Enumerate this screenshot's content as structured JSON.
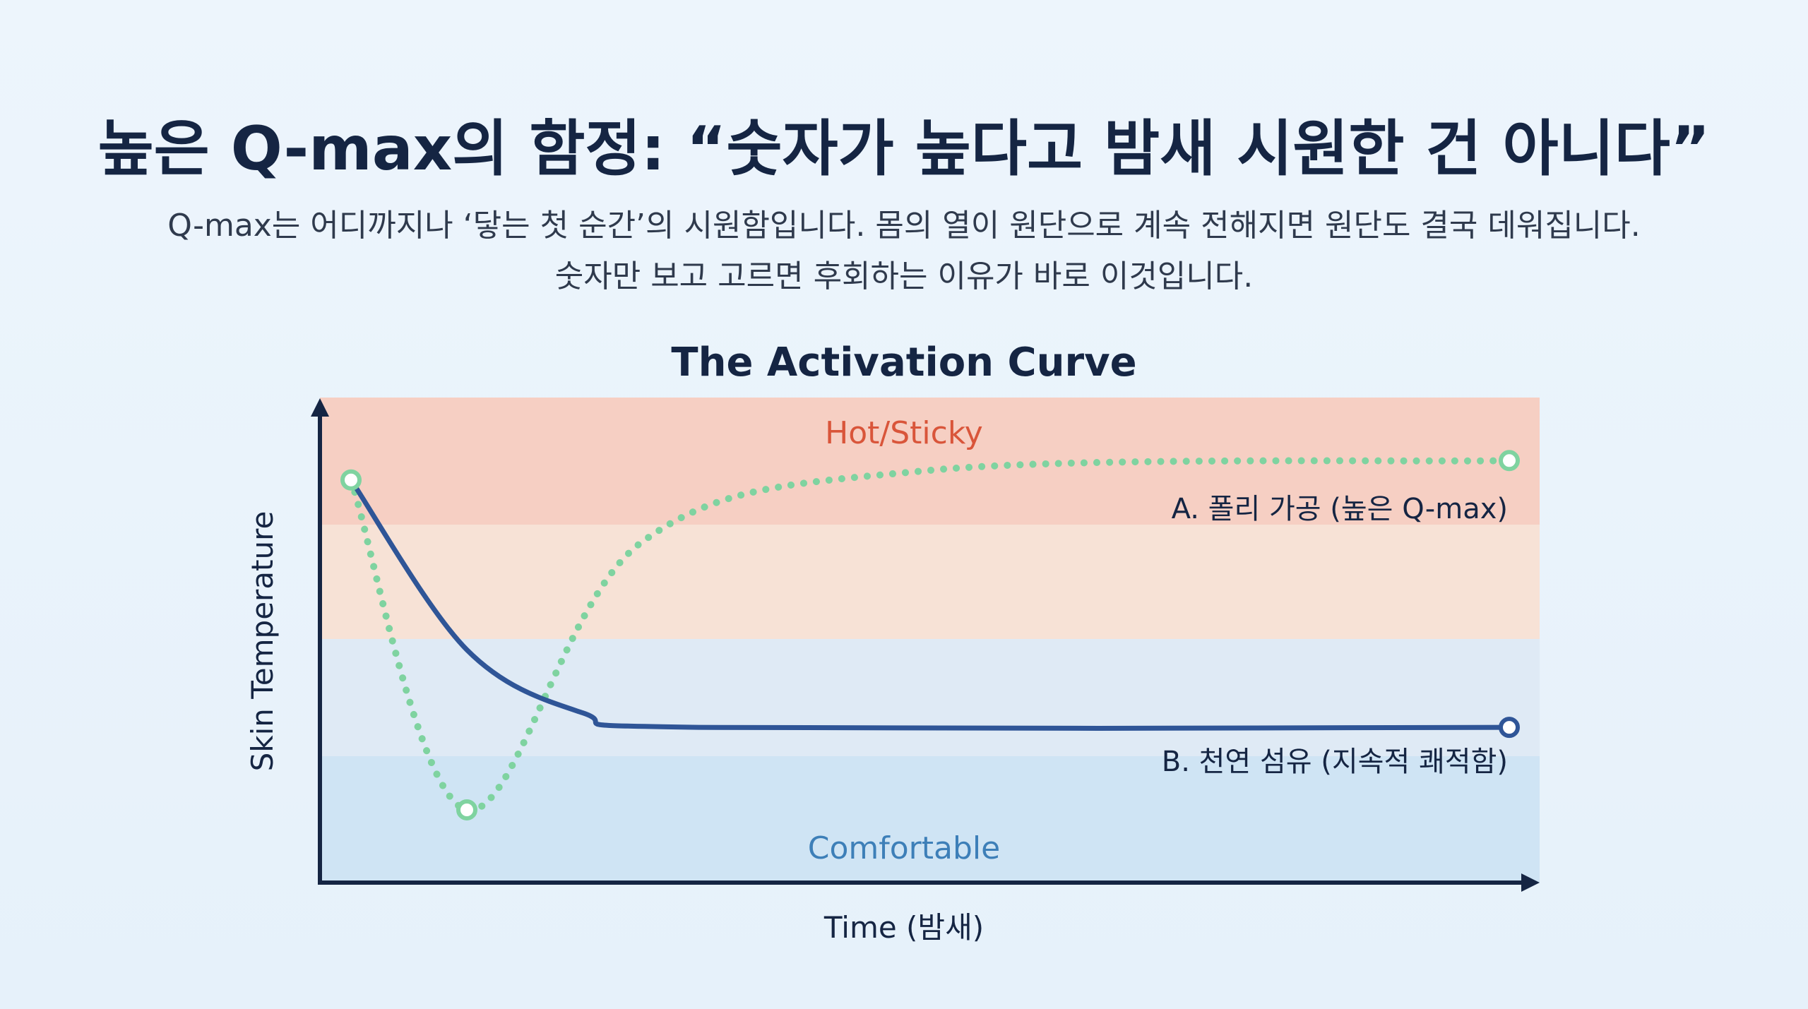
{
  "header": {
    "title": "높은 Q-max의 함정: “숫자가 높다고 밤새 시원한 건 아니다”",
    "subtitle_line1": "Q-max는 어디까지나 ‘닿는 첫 순간’의 시원함입니다. 몸의 열이 원단으로 계속 전해지면 원단도 결국 데워집니다.",
    "subtitle_line2": "숫자만 보고 고르면 후회하는 이유가 바로 이것입니다."
  },
  "chart_data": {
    "type": "line",
    "title": "The Activation Curve",
    "xlabel": "Time (밤새)",
    "ylabel": "Skin Temperature",
    "zones": {
      "top_label": "Hot/Sticky",
      "bottom_label": "Comfortable",
      "colors": [
        "#f6cfc3",
        "#f7e2d6",
        "#dfeaf5",
        "#cfe4f4"
      ]
    },
    "series": [
      {
        "name": "A. 폴리 가공 (높은 Q-max)",
        "style": "dotted",
        "color": "#7fd3a0",
        "points": [
          [
            0.0,
            0.83
          ],
          [
            0.1,
            0.15
          ],
          [
            0.25,
            0.7
          ],
          [
            0.5,
            0.85
          ],
          [
            1.0,
            0.87
          ]
        ]
      },
      {
        "name": "B. 천연 섬유 (지속적 쾌적함)",
        "style": "solid",
        "color": "#2f5597",
        "points": [
          [
            0.0,
            0.83
          ],
          [
            0.1,
            0.48
          ],
          [
            0.2,
            0.35
          ],
          [
            0.3,
            0.32
          ],
          [
            1.0,
            0.32
          ]
        ]
      }
    ]
  },
  "colors": {
    "title": "#152543",
    "axis": "#152543",
    "hot_label": "#d9553a",
    "comfort_label": "#3d7fb8"
  }
}
